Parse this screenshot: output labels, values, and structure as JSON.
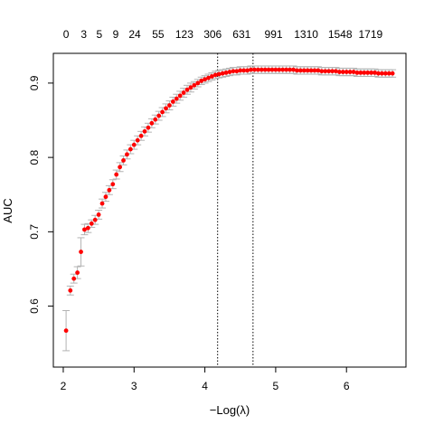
{
  "chart_data": {
    "type": "scatter",
    "title": "",
    "xlabel": "−Log(λ)",
    "ylabel": "AUC",
    "xlim": [
      1.86,
      6.84
    ],
    "ylim": [
      0.518,
      0.94
    ],
    "x_ticks": [
      "2",
      "3",
      "4",
      "5",
      "6"
    ],
    "y_ticks": [
      "0.6",
      "0.7",
      "0.8",
      "0.9"
    ],
    "top_axis_labels": [
      {
        "x": 2.04,
        "label": "0"
      },
      {
        "x": 2.29,
        "label": "3"
      },
      {
        "x": 2.51,
        "label": "5"
      },
      {
        "x": 2.74,
        "label": "9"
      },
      {
        "x": 3.01,
        "label": "24"
      },
      {
        "x": 3.34,
        "label": "55"
      },
      {
        "x": 3.71,
        "label": "123"
      },
      {
        "x": 4.11,
        "label": "306"
      },
      {
        "x": 4.52,
        "label": "631"
      },
      {
        "x": 4.97,
        "label": "991"
      },
      {
        "x": 5.43,
        "label": "1310"
      },
      {
        "x": 5.91,
        "label": "1548"
      },
      {
        "x": 6.34,
        "label": "1719"
      }
    ],
    "vlines": [
      4.18,
      4.68
    ],
    "colors": {
      "point": "#ff0000",
      "errorbar": "#b3b3b3",
      "axis": "#000000"
    },
    "series": [
      {
        "x": [
          2.04,
          2.1,
          2.15,
          2.2,
          2.25,
          2.3,
          2.35,
          2.4,
          2.45,
          2.5,
          2.55,
          2.6,
          2.65,
          2.7,
          2.75,
          2.8,
          2.85,
          2.9,
          2.95,
          3,
          3.05,
          3.1,
          3.15,
          3.2,
          3.25,
          3.3,
          3.35,
          3.4,
          3.45,
          3.5,
          3.55,
          3.6,
          3.65,
          3.7,
          3.75,
          3.8,
          3.85,
          3.9,
          3.95,
          4,
          4.05,
          4.1,
          4.15,
          4.2,
          4.25,
          4.3,
          4.35,
          4.4,
          4.45,
          4.5,
          4.55,
          4.6,
          4.65,
          4.7,
          4.75,
          4.8,
          4.85,
          4.9,
          4.95,
          5,
          5.05,
          5.1,
          5.15,
          5.2,
          5.25,
          5.3,
          5.35,
          5.4,
          5.45,
          5.5,
          5.55,
          5.6,
          5.65,
          5.7,
          5.75,
          5.8,
          5.85,
          5.9,
          5.95,
          6,
          6.05,
          6.1,
          6.15,
          6.2,
          6.25,
          6.3,
          6.35,
          6.4,
          6.45,
          6.5,
          6.55,
          6.6,
          6.65
        ],
        "y": [
          0.567,
          0.621,
          0.637,
          0.645,
          0.673,
          0.703,
          0.705,
          0.711,
          0.716,
          0.723,
          0.738,
          0.747,
          0.756,
          0.764,
          0.777,
          0.787,
          0.796,
          0.804,
          0.811,
          0.817,
          0.823,
          0.829,
          0.835,
          0.84,
          0.846,
          0.851,
          0.856,
          0.861,
          0.866,
          0.87,
          0.875,
          0.879,
          0.883,
          0.887,
          0.891,
          0.894,
          0.897,
          0.9,
          0.903,
          0.905,
          0.907,
          0.909,
          0.911,
          0.912,
          0.913,
          0.914,
          0.915,
          0.916,
          0.916,
          0.917,
          0.917,
          0.917,
          0.918,
          0.918,
          0.918,
          0.918,
          0.918,
          0.918,
          0.918,
          0.918,
          0.918,
          0.918,
          0.918,
          0.918,
          0.918,
          0.917,
          0.917,
          0.917,
          0.917,
          0.917,
          0.917,
          0.917,
          0.916,
          0.916,
          0.916,
          0.916,
          0.916,
          0.915,
          0.915,
          0.915,
          0.915,
          0.915,
          0.914,
          0.914,
          0.914,
          0.914,
          0.914,
          0.914,
          0.913,
          0.913,
          0.913,
          0.913,
          0.913
        ],
        "err": [
          0.027,
          0.006,
          0.006,
          0.008,
          0.019,
          0.007,
          0.006,
          0.005,
          0.006,
          0.006,
          0.006,
          0.006,
          0.006,
          0.006,
          0.006,
          0.006,
          0.006,
          0.006,
          0.006,
          0.006,
          0.006,
          0.006,
          0.006,
          0.006,
          0.006,
          0.006,
          0.006,
          0.006,
          0.006,
          0.006,
          0.006,
          0.006,
          0.006,
          0.006,
          0.006,
          0.006,
          0.005,
          0.005,
          0.005,
          0.005,
          0.005,
          0.005,
          0.005,
          0.005,
          0.005,
          0.005,
          0.005,
          0.005,
          0.005,
          0.005,
          0.005,
          0.005,
          0.005,
          0.005,
          0.005,
          0.005,
          0.005,
          0.005,
          0.005,
          0.005,
          0.005,
          0.005,
          0.005,
          0.005,
          0.005,
          0.005,
          0.005,
          0.005,
          0.005,
          0.005,
          0.005,
          0.005,
          0.005,
          0.005,
          0.005,
          0.005,
          0.005,
          0.005,
          0.005,
          0.005,
          0.005,
          0.005,
          0.005,
          0.005,
          0.005,
          0.005,
          0.005,
          0.005,
          0.005,
          0.005,
          0.005,
          0.005,
          0.005
        ]
      }
    ]
  }
}
